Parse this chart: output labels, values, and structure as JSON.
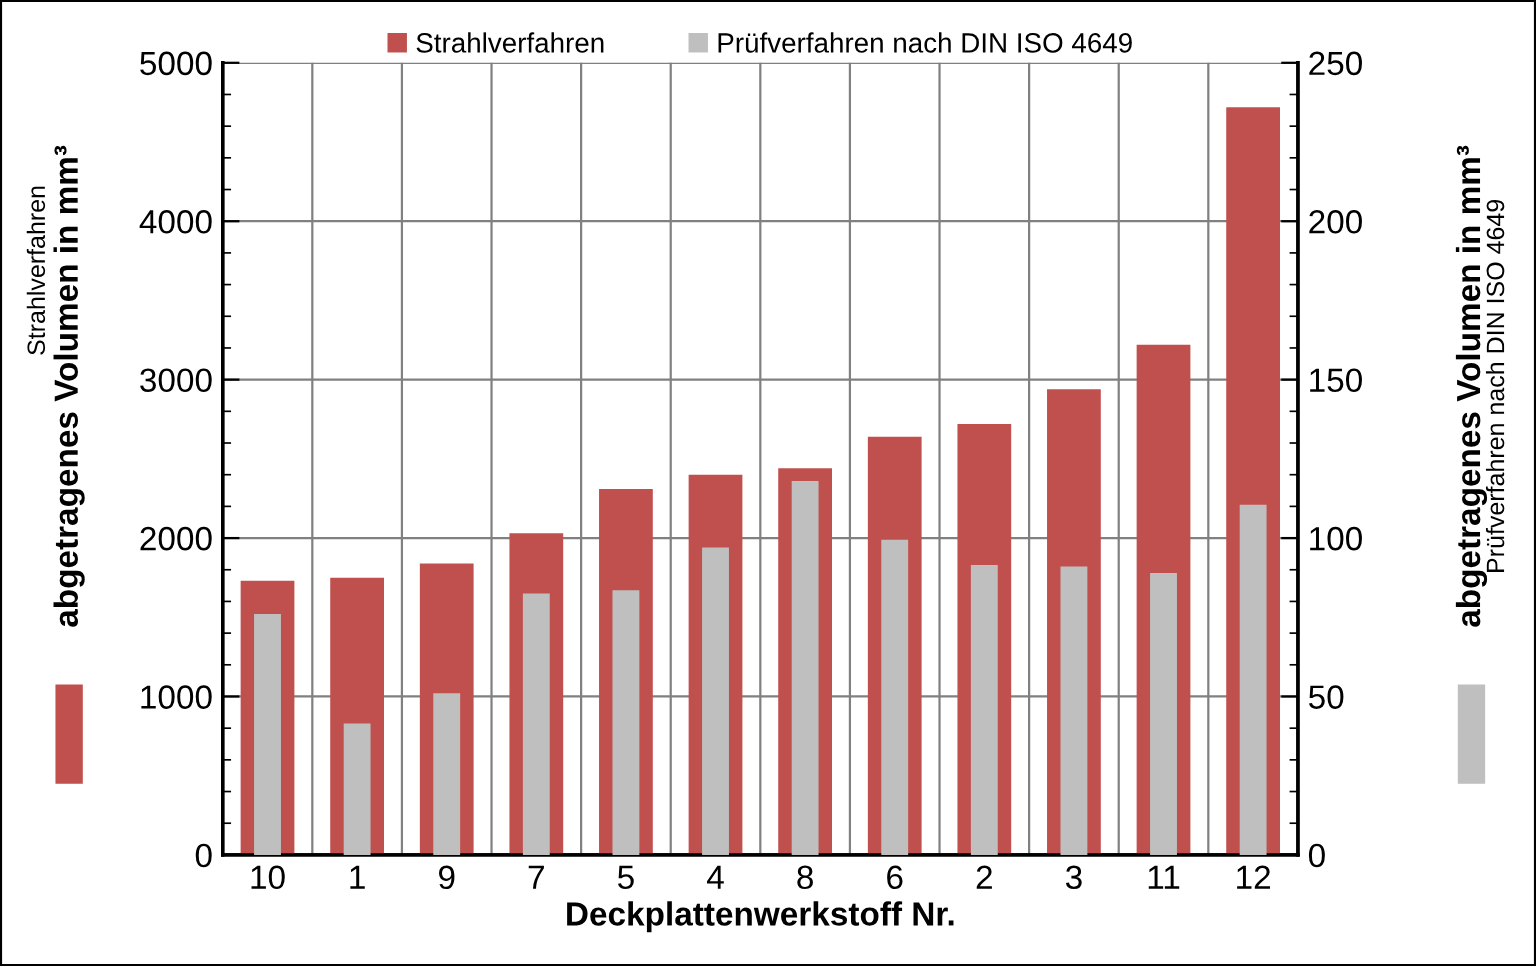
{
  "chart_data": {
    "type": "bar",
    "categories": [
      "10",
      "1",
      "9",
      "7",
      "5",
      "4",
      "8",
      "6",
      "2",
      "3",
      "11",
      "12"
    ],
    "series": [
      {
        "name": "Strahlverfahren",
        "color": "#c0504d",
        "values": [
          1730,
          1750,
          1840,
          2030,
          2310,
          2400,
          2440,
          2640,
          2720,
          2940,
          3220,
          4720
        ]
      },
      {
        "name": "Prüfverfahren nach DIN ISO 4649",
        "color": "#bfbfbf",
        "axis": "y2",
        "values": [
          76,
          41.5,
          51,
          82.5,
          83.5,
          97,
          118,
          99.5,
          91.5,
          91,
          89,
          110.5
        ]
      }
    ],
    "xlabel": "Deckplattenwerkstoff Nr.",
    "ylabel": "abgetragenes Volumen in mm³",
    "y2label": "abgetragenes Volumen in mm³",
    "ylim": [
      0,
      5000
    ],
    "yticks": [
      0,
      1000,
      2000,
      3000,
      4000,
      5000
    ],
    "y2lim": [
      0,
      250
    ],
    "y2ticks": [
      0,
      50,
      100,
      150,
      200,
      250
    ],
    "grid": true,
    "legend": "top"
  }
}
